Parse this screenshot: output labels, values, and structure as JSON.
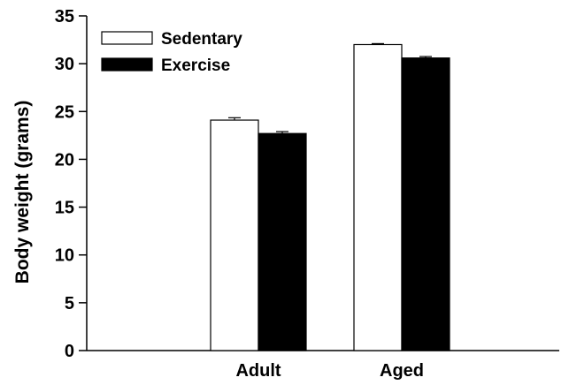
{
  "chart_data": {
    "type": "bar",
    "categories": [
      "Adult",
      "Aged"
    ],
    "series": [
      {
        "name": "Sedentary",
        "values": [
          24.1,
          32.0
        ],
        "errors": [
          0.25,
          0.1
        ],
        "color": "#ffffff"
      },
      {
        "name": "Exercise",
        "values": [
          22.7,
          30.6
        ],
        "errors": [
          0.2,
          0.15
        ],
        "color": "#000000"
      }
    ],
    "xlabel": "",
    "ylabel": "Body weight (grams)",
    "ylim": [
      0,
      35
    ],
    "yticks": [
      0,
      5,
      10,
      15,
      20,
      25,
      30,
      35
    ],
    "grid": false,
    "legend_position": "top-left"
  }
}
